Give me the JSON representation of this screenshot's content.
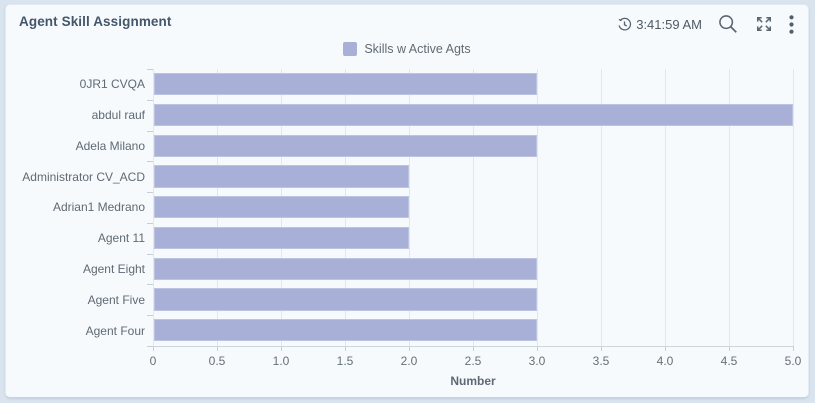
{
  "header": {
    "title": "Agent Skill Assignment",
    "time": "3:41:59 AM"
  },
  "icons": {
    "clock": "history-clock-icon",
    "search": "search-icon",
    "expand": "expand-arrows-icon",
    "menu": "kebab-menu-icon"
  },
  "colors": {
    "page_bg": "#d9e4ef",
    "card_bg": "#f7fafc",
    "title_text": "#44566b",
    "icon_gray": "#5a6670",
    "axis_text": "#65707a",
    "gridline": "#e1e7ed"
  },
  "chart_data": {
    "type": "bar",
    "orientation": "horizontal",
    "title": "",
    "legend": [
      "Skills w Active Agts"
    ],
    "legend_position": "top-center",
    "categories": [
      "0JR1 CVQA",
      "abdul rauf",
      "Adela Milano",
      "Administrator CV_ACD",
      "Adrian1 Medrano",
      "Agent 11",
      "Agent Eight",
      "Agent Five",
      "Agent Four"
    ],
    "values": [
      3,
      5,
      3,
      2,
      2,
      2,
      3,
      3,
      3
    ],
    "xlabel": "Number",
    "ylabel": "",
    "xlim": [
      0,
      5
    ],
    "xticks": [
      "0",
      "0.5",
      "1.0",
      "1.5",
      "2.0",
      "2.5",
      "3.0",
      "3.5",
      "4.0",
      "4.5",
      "5.0"
    ],
    "grid": true,
    "bar_color": "#a8b0d7",
    "bar_border_color": "#bdc4e1"
  }
}
